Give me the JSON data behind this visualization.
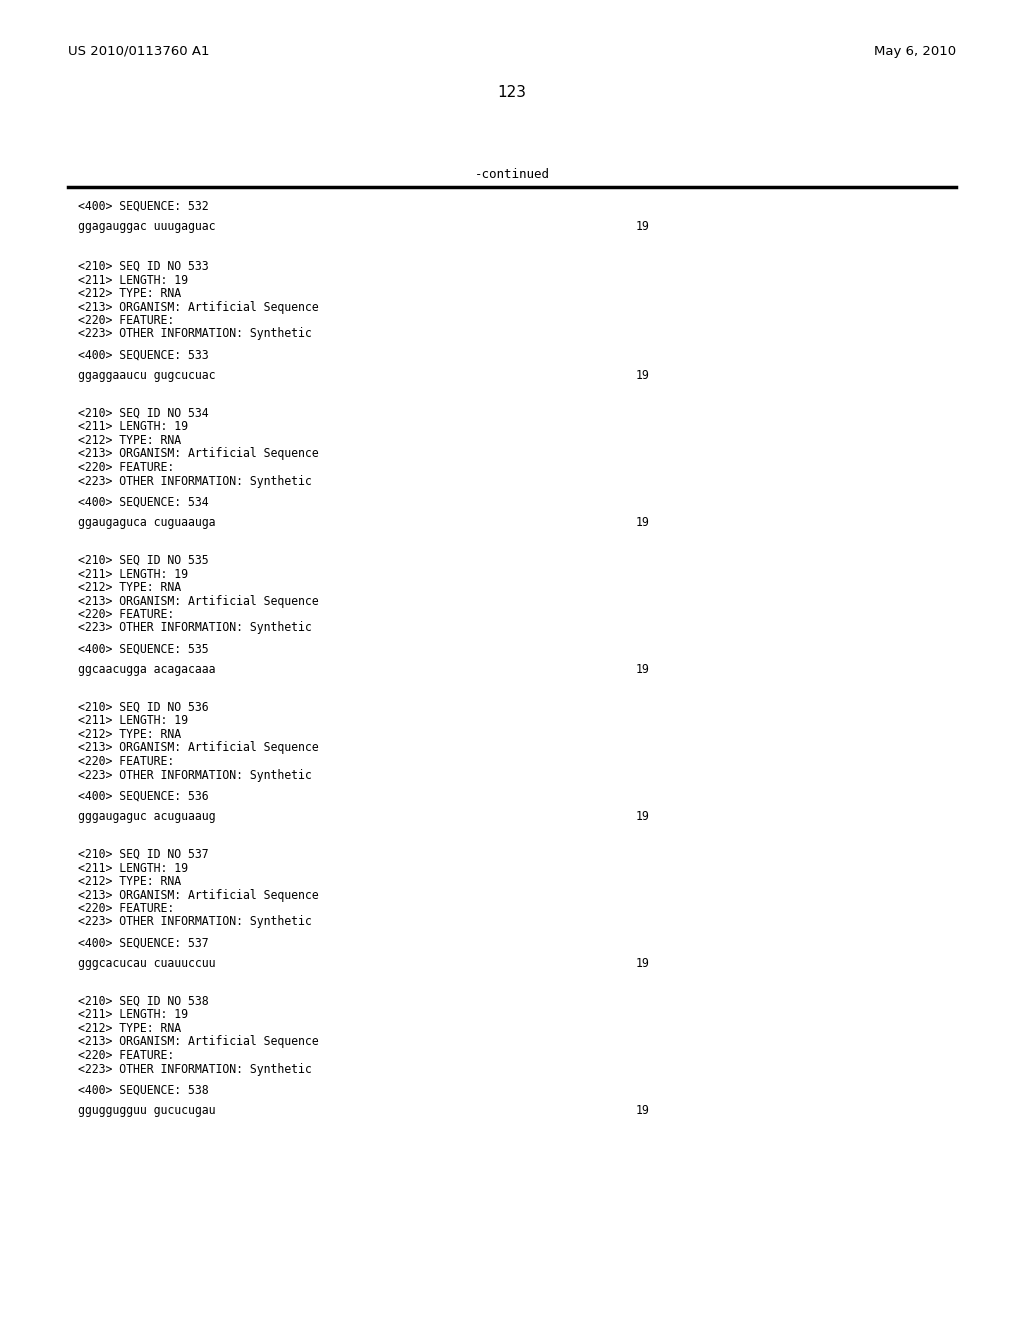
{
  "header_left": "US 2010/0113760 A1",
  "header_right": "May 6, 2010",
  "page_number": "123",
  "continued_label": "-continued",
  "background_color": "#ffffff",
  "text_color": "#000000",
  "line_color": "#000000",
  "seq532_label": "<400> SEQUENCE: 532",
  "seq532_seq": "ggagauggac uuugaguac",
  "full_blocks": [
    {
      "lines": [
        "<210> SEQ ID NO 533",
        "<211> LENGTH: 19",
        "<212> TYPE: RNA",
        "<213> ORGANISM: Artificial Sequence",
        "<220> FEATURE:",
        "<223> OTHER INFORMATION: Synthetic"
      ],
      "seq400": "<400> SEQUENCE: 533",
      "sequence": "ggaggaaucu gugcucuac",
      "seq_length": "19"
    },
    {
      "lines": [
        "<210> SEQ ID NO 534",
        "<211> LENGTH: 19",
        "<212> TYPE: RNA",
        "<213> ORGANISM: Artificial Sequence",
        "<220> FEATURE:",
        "<223> OTHER INFORMATION: Synthetic"
      ],
      "seq400": "<400> SEQUENCE: 534",
      "sequence": "ggaugaguca cuguaauga",
      "seq_length": "19"
    },
    {
      "lines": [
        "<210> SEQ ID NO 535",
        "<211> LENGTH: 19",
        "<212> TYPE: RNA",
        "<213> ORGANISM: Artificial Sequence",
        "<220> FEATURE:",
        "<223> OTHER INFORMATION: Synthetic"
      ],
      "seq400": "<400> SEQUENCE: 535",
      "sequence": "ggcaacugga acagacaaa",
      "seq_length": "19"
    },
    {
      "lines": [
        "<210> SEQ ID NO 536",
        "<211> LENGTH: 19",
        "<212> TYPE: RNA",
        "<213> ORGANISM: Artificial Sequence",
        "<220> FEATURE:",
        "<223> OTHER INFORMATION: Synthetic"
      ],
      "seq400": "<400> SEQUENCE: 536",
      "sequence": "gggaugaguc acuguaaug",
      "seq_length": "19"
    },
    {
      "lines": [
        "<210> SEQ ID NO 537",
        "<211> LENGTH: 19",
        "<212> TYPE: RNA",
        "<213> ORGANISM: Artificial Sequence",
        "<220> FEATURE:",
        "<223> OTHER INFORMATION: Synthetic"
      ],
      "seq400": "<400> SEQUENCE: 537",
      "sequence": "gggcacucau cuauuccuu",
      "seq_length": "19"
    },
    {
      "lines": [
        "<210> SEQ ID NO 538",
        "<211> LENGTH: 19",
        "<212> TYPE: RNA",
        "<213> ORGANISM: Artificial Sequence",
        "<220> FEATURE:",
        "<223> OTHER INFORMATION: Synthetic"
      ],
      "seq400": "<400> SEQUENCE: 538",
      "sequence": "gguggugguu gucucugau",
      "seq_length": "19"
    }
  ]
}
